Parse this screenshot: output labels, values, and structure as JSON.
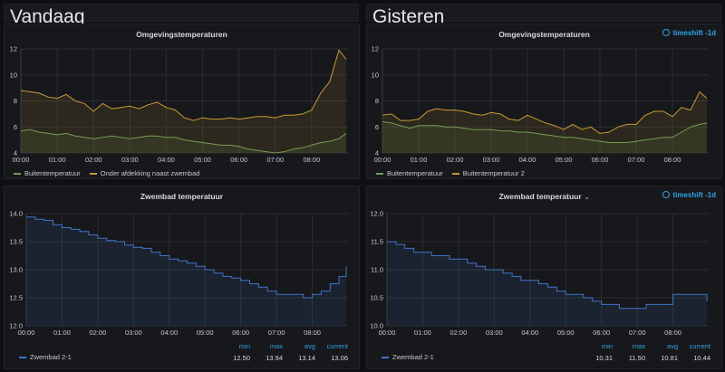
{
  "rows": [
    {
      "title": "Vandaag"
    },
    {
      "title": "Gisteren"
    }
  ],
  "panels": [
    {
      "title": "Omgevingstemperaturen",
      "legend": [
        "Buitentemperatuur",
        "Onder afdekking naast zwembad"
      ]
    },
    {
      "title": "Omgevingstemperaturen",
      "timeshift": "timeshift -1d",
      "legend": [
        "Buitentemperatuur",
        "Buitentemperatuur 2"
      ]
    },
    {
      "title": "Zwembad temperatuur",
      "legend": [
        "Zwembad 2-1"
      ],
      "stat_headers": [
        "min",
        "max",
        "avg",
        "current"
      ],
      "stats": [
        "12.50",
        "13.94",
        "13.14",
        "13.06"
      ]
    },
    {
      "title": "Zwembad temperatuur",
      "timeshift": "timeshift -1d",
      "legend": [
        "Zwembad 2-1"
      ],
      "stat_headers": [
        "min",
        "max",
        "avg",
        "current"
      ],
      "stats": [
        "10.31",
        "11.50",
        "10.81",
        "10.44"
      ]
    }
  ],
  "colors": {
    "yellow": "#c89a32",
    "green": "#6f9c55",
    "blue": "#3f74c9",
    "accent": "#33a2e5"
  },
  "chart_data": [
    {
      "type": "area",
      "title": "Omgevingstemperaturen",
      "x_ticks": [
        "00:00",
        "01:00",
        "02:00",
        "03:00",
        "04:00",
        "05:00",
        "06:00",
        "07:00",
        "08:00"
      ],
      "xlim": [
        0,
        9
      ],
      "y_ticks": [
        "4",
        "6",
        "8",
        "10",
        "12"
      ],
      "ylim": [
        4,
        12
      ],
      "x_step_hours": 0.25,
      "series": [
        {
          "name": "Buitentemperatuur",
          "color": "#6f9c55",
          "values": [
            5.7,
            5.8,
            5.6,
            5.5,
            5.4,
            5.5,
            5.3,
            5.2,
            5.1,
            5.2,
            5.3,
            5.2,
            5.1,
            5.2,
            5.3,
            5.3,
            5.2,
            5.2,
            5.0,
            4.9,
            4.8,
            4.7,
            4.6,
            4.6,
            4.5,
            4.3,
            4.2,
            4.1,
            4.0,
            4.1,
            4.3,
            4.4,
            4.6,
            4.8,
            4.9,
            5.1,
            5.5
          ]
        },
        {
          "name": "Onder afdekking naast zwembad",
          "color": "#c89a32",
          "values": [
            8.8,
            8.7,
            8.6,
            8.3,
            8.2,
            8.5,
            8.0,
            7.8,
            7.2,
            7.8,
            7.4,
            7.5,
            7.6,
            7.4,
            7.7,
            7.9,
            7.5,
            7.3,
            6.7,
            6.5,
            6.7,
            6.6,
            6.6,
            6.7,
            6.6,
            6.7,
            6.8,
            6.8,
            6.7,
            6.9,
            6.9,
            7.0,
            7.3,
            8.6,
            9.5,
            11.9,
            11.2
          ]
        }
      ]
    },
    {
      "type": "area",
      "title": "Omgevingstemperaturen",
      "x_ticks": [
        "00:00",
        "01:00",
        "02:00",
        "03:00",
        "04:00",
        "05:00",
        "06:00",
        "07:00",
        "08:00"
      ],
      "xlim": [
        0,
        9
      ],
      "y_ticks": [
        "4",
        "6",
        "8",
        "10",
        "12"
      ],
      "ylim": [
        4,
        12
      ],
      "x_step_hours": 0.25,
      "series": [
        {
          "name": "Buitentemperatuur",
          "color": "#6f9c55",
          "values": [
            6.4,
            6.3,
            6.1,
            5.9,
            6.1,
            6.1,
            6.1,
            6.0,
            6.0,
            5.9,
            5.8,
            5.8,
            5.8,
            5.7,
            5.7,
            5.6,
            5.6,
            5.5,
            5.4,
            5.3,
            5.2,
            5.2,
            5.1,
            5.0,
            4.9,
            4.8,
            4.8,
            4.8,
            4.9,
            5.0,
            5.1,
            5.2,
            5.2,
            5.6,
            6.0,
            6.2,
            6.3
          ]
        },
        {
          "name": "Buitentemperatuur 2",
          "color": "#c89a32",
          "values": [
            6.9,
            7.0,
            6.5,
            6.5,
            6.6,
            7.2,
            7.4,
            7.3,
            7.3,
            7.2,
            7.0,
            6.9,
            7.1,
            7.0,
            6.6,
            6.5,
            6.9,
            6.6,
            6.3,
            6.1,
            5.8,
            6.2,
            5.8,
            6.0,
            5.5,
            5.6,
            6.0,
            6.2,
            6.2,
            6.9,
            7.2,
            7.2,
            6.8,
            7.5,
            7.3,
            8.7,
            8.2
          ]
        }
      ]
    },
    {
      "type": "area",
      "title": "Zwembad temperatuur",
      "x_ticks": [
        "00:00",
        "01:00",
        "02:00",
        "03:00",
        "04:00",
        "05:00",
        "06:00",
        "07:00",
        "08:00"
      ],
      "xlim": [
        0,
        9
      ],
      "y_ticks": [
        "12.0",
        "12.5",
        "13.0",
        "13.5",
        "14.0"
      ],
      "ylim": [
        12,
        14
      ],
      "x_step_hours": 0.25,
      "series": [
        {
          "name": "Zwembad 2-1",
          "color": "#3f74c9",
          "values": [
            13.94,
            13.9,
            13.88,
            13.8,
            13.75,
            13.72,
            13.68,
            13.62,
            13.56,
            13.52,
            13.5,
            13.44,
            13.4,
            13.38,
            13.31,
            13.25,
            13.19,
            13.16,
            13.12,
            13.06,
            13.0,
            12.94,
            12.88,
            12.85,
            12.81,
            12.75,
            12.69,
            12.62,
            12.56,
            12.56,
            12.56,
            12.5,
            12.56,
            12.62,
            12.75,
            12.88,
            13.06
          ]
        }
      ]
    },
    {
      "type": "area",
      "title": "Zwembad temperatuur",
      "x_ticks": [
        "00:00",
        "01:00",
        "02:00",
        "03:00",
        "04:00",
        "05:00",
        "06:00",
        "07:00",
        "08:00"
      ],
      "xlim": [
        0,
        9
      ],
      "y_ticks": [
        "10.0",
        "10.5",
        "11.0",
        "11.5",
        "12.0"
      ],
      "ylim": [
        10,
        12
      ],
      "x_step_hours": 0.25,
      "series": [
        {
          "name": "Zwembad 2-1",
          "color": "#3f74c9",
          "values": [
            11.5,
            11.45,
            11.38,
            11.31,
            11.31,
            11.25,
            11.25,
            11.19,
            11.19,
            11.12,
            11.06,
            11.0,
            11.0,
            10.94,
            10.88,
            10.81,
            10.81,
            10.75,
            10.69,
            10.62,
            10.56,
            10.56,
            10.5,
            10.44,
            10.38,
            10.38,
            10.31,
            10.31,
            10.31,
            10.38,
            10.38,
            10.38,
            10.56,
            10.56,
            10.56,
            10.56,
            10.44
          ]
        }
      ]
    }
  ]
}
